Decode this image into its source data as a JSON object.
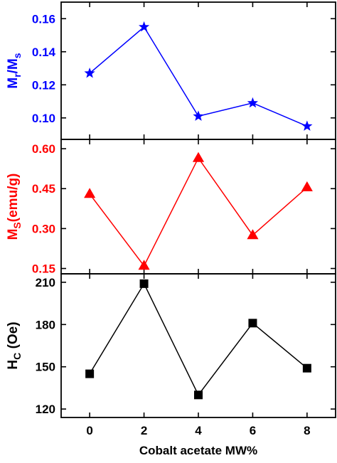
{
  "chart_data": [
    {
      "type": "line",
      "x": [
        0,
        2,
        4,
        6,
        8
      ],
      "values": [
        0.127,
        0.155,
        0.101,
        0.109,
        0.095
      ],
      "ylim": [
        0.087,
        0.17
      ],
      "yticks": [
        0.1,
        0.12,
        0.14,
        0.16
      ],
      "ytick_labels": [
        "0.10",
        "0.12",
        "0.14",
        "0.16"
      ],
      "ylabel": {
        "main": "M",
        "sub1": "r",
        "mid": "/M",
        "sub2": "s"
      },
      "marker": "star",
      "color": "#0000ff"
    },
    {
      "type": "line",
      "x": [
        0,
        2,
        4,
        6,
        8
      ],
      "values": [
        0.43,
        0.16,
        0.565,
        0.275,
        0.455
      ],
      "ylim": [
        0.13,
        0.635
      ],
      "yticks": [
        0.15,
        0.3,
        0.45,
        0.6
      ],
      "ytick_labels": [
        "0.15",
        "0.30",
        "0.45",
        "0.60"
      ],
      "ylabel": {
        "main": "M",
        "sub1": "S",
        "mid": "(emu/g)",
        "sub2": ""
      },
      "marker": "triangle",
      "color": "#ff0000"
    },
    {
      "type": "line",
      "x": [
        0,
        2,
        4,
        6,
        8
      ],
      "values": [
        145,
        209,
        130,
        181,
        149
      ],
      "ylim": [
        114,
        216
      ],
      "yticks": [
        120,
        150,
        180,
        210
      ],
      "ytick_labels": [
        "120",
        "150",
        "180",
        "210"
      ],
      "ylabel": {
        "main": "H",
        "sub1": "C",
        "mid": " (Oe)",
        "sub2": ""
      },
      "marker": "square",
      "color": "#000000"
    }
  ],
  "xaxis": {
    "xlabel": "Cobalt acetate MW%",
    "xlim": [
      -1.05,
      9.05
    ],
    "xticks": [
      0,
      2,
      4,
      6,
      8
    ],
    "xtick_labels": [
      "0",
      "2",
      "4",
      "6",
      "8"
    ]
  }
}
